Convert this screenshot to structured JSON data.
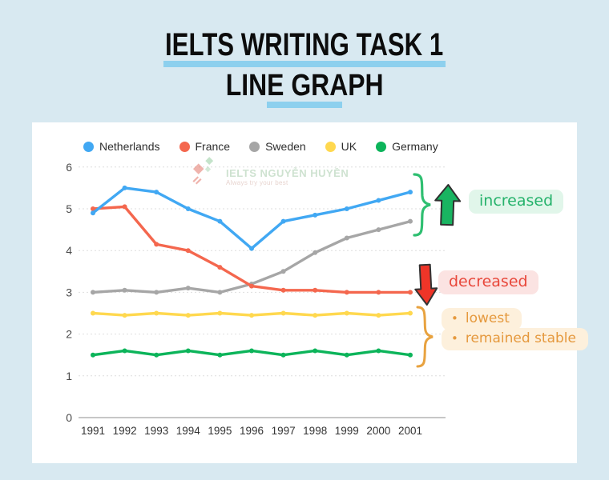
{
  "header": {
    "line1": "IELTS WRITING TASK 1",
    "line2": "LINE GRAPH"
  },
  "colors": {
    "background": "#d8e9f1",
    "underline": "#8dd0ee",
    "card": "#ffffff",
    "green": "#25b26b",
    "green_bg": "#e1f6ea",
    "red": "#e8473a",
    "red_bg": "#fbe3e2",
    "orange": "#e5993e",
    "orange_bg": "#fdf0dc",
    "arrow_green": "#19b461",
    "arrow_red": "#ee3528",
    "brace_green": "#2fbf71",
    "brace_orange": "#e8a23f"
  },
  "chart_data": {
    "type": "line",
    "x": [
      "1991",
      "1992",
      "1993",
      "1994",
      "1995",
      "1996",
      "1997",
      "1998",
      "1999",
      "2000",
      "2001"
    ],
    "ylim": [
      0,
      6
    ],
    "yticks": [
      0,
      1,
      2,
      3,
      4,
      5,
      6
    ],
    "grid": true,
    "legend_position": "top",
    "series": [
      {
        "name": "Netherlands",
        "color": "#41a8f3",
        "values": [
          4.9,
          5.5,
          5.4,
          5.0,
          4.7,
          4.05,
          4.7,
          4.85,
          5.0,
          5.2,
          5.4
        ]
      },
      {
        "name": "France",
        "color": "#f4674e",
        "values": [
          5.0,
          5.05,
          4.15,
          4.0,
          3.6,
          3.15,
          3.05,
          3.05,
          3.0,
          3.0,
          3.0
        ]
      },
      {
        "name": "Sweden",
        "color": "#a6a6a6",
        "values": [
          3.0,
          3.05,
          3.0,
          3.1,
          3.0,
          3.2,
          3.5,
          3.95,
          4.3,
          4.5,
          4.7
        ]
      },
      {
        "name": "UK",
        "color": "#ffd84f",
        "values": [
          2.5,
          2.45,
          2.5,
          2.45,
          2.5,
          2.45,
          2.5,
          2.45,
          2.5,
          2.45,
          2.5
        ]
      },
      {
        "name": "Germany",
        "color": "#0cb45a",
        "values": [
          1.5,
          1.6,
          1.5,
          1.6,
          1.5,
          1.6,
          1.5,
          1.6,
          1.5,
          1.6,
          1.5
        ]
      }
    ]
  },
  "annotations": {
    "increased": {
      "label": "increased"
    },
    "decreased": {
      "label": "decreased"
    },
    "stable": {
      "bullet": "•",
      "labels": [
        "lowest",
        "remained stable"
      ]
    }
  },
  "watermark": {
    "title": "IELTS NGUYỄN HUYỀN",
    "tagline": "Always try your best"
  }
}
